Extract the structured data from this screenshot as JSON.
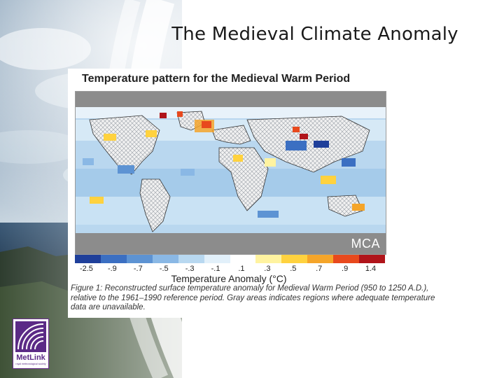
{
  "slide": {
    "title": "The Medieval Climate Anomaly"
  },
  "figure": {
    "title": "Temperature pattern for the Medieval Warm Period",
    "map_label": "MCA",
    "color_scale": {
      "ticks": [
        "-2.5",
        "-.9",
        "-.7",
        "-.5",
        "-.3",
        "-.1",
        ".1",
        ".3",
        ".5",
        ".7",
        ".9",
        "1.4"
      ],
      "colors": [
        "#1f3f9a",
        "#3b6fc2",
        "#5d93d3",
        "#8ab8e5",
        "#b8d8f0",
        "#e2f0fa",
        "#ffffff",
        "#fff3a0",
        "#ffd23f",
        "#f5a52a",
        "#e8491d",
        "#b0141a"
      ],
      "label": "Temperature Anomaly (°C)"
    },
    "caption": "Figure 1: Reconstructed surface temperature anomaly for Medieval Warm Period (950 to 1250 A.D.), relative to the 1961–1990 reference period. Gray areas indicates regions where adequate temperature data are unavailable."
  },
  "logo": {
    "name": "MetLink",
    "tagline": "royal meteorological society"
  }
}
